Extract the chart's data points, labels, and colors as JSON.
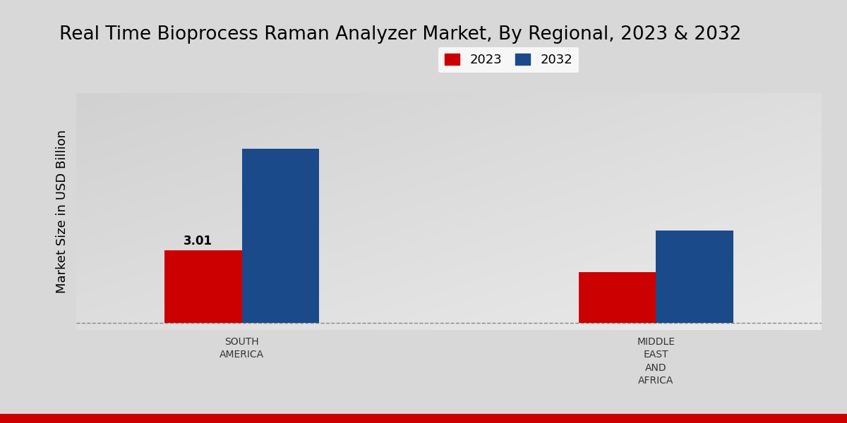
{
  "title": "Real Time Bioprocess Raman Analyzer Market, By Regional, 2023 & 2032",
  "ylabel": "Market Size in USD Billion",
  "categories": [
    "SOUTH\nAMERICA",
    "MIDDLE\nEAST\nAND\nAFRICA"
  ],
  "values_2023": [
    3.01,
    2.1
  ],
  "values_2032": [
    7.2,
    3.8
  ],
  "color_2023": "#cc0000",
  "color_2032": "#1a4a8a",
  "label_2023": "2023",
  "label_2032": "2032",
  "bar_width": 0.28,
  "annotation_2023_sa": "3.01",
  "bg_left": "#d0d0d0",
  "bg_right": "#e8e8e8",
  "title_fontsize": 19,
  "axis_label_fontsize": 13,
  "legend_fontsize": 13,
  "tick_fontsize": 10,
  "annotation_fontsize": 12,
  "bottom_bar_color": "#cc0000",
  "xlim": [
    0.1,
    2.8
  ],
  "ylim": [
    -0.3,
    9.5
  ],
  "group_positions": [
    0.7,
    2.2
  ]
}
